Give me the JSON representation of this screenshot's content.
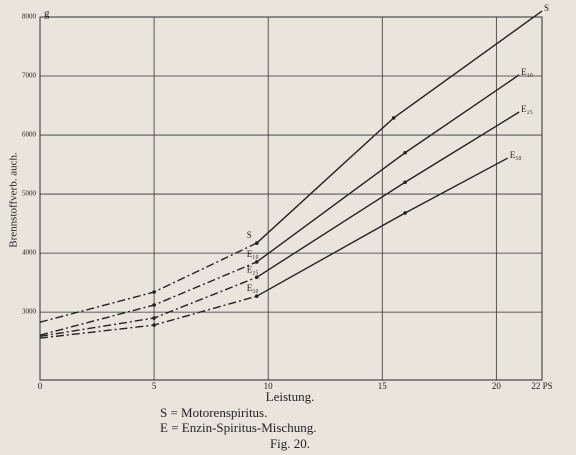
{
  "chart_data": {
    "type": "line",
    "x_label": "Leistung.",
    "y_label": "Brennstoffverb. auch.",
    "y_unit": "g",
    "caption": [
      "S = Motorenspiritus.",
      "E = Enzin-Spiritus-Mischung.",
      "Fig. 20."
    ],
    "xlim": [
      0,
      22
    ],
    "xticks": [
      0,
      5,
      10,
      15,
      20,
      {
        "value": 22,
        "label": "22 PS"
      }
    ],
    "ylim": [
      1850,
      8000
    ],
    "yticks": [
      3000,
      4000,
      5000,
      6000,
      7000,
      8000
    ],
    "grid": true,
    "color": "#222",
    "solid_from_x": 9.5,
    "series": [
      {
        "name": "S",
        "x": [
          0,
          5,
          9.5,
          15.5,
          22
        ],
        "values": [
          2830,
          3340,
          4170,
          6290,
          8100
        ]
      },
      {
        "name": "E₁₀",
        "x": [
          0,
          5,
          9.5,
          16,
          21
        ],
        "values": [
          2610,
          3120,
          3850,
          5700,
          7020
        ]
      },
      {
        "name": "E₂₅",
        "x": [
          0,
          5,
          9.5,
          16,
          21
        ],
        "values": [
          2590,
          2900,
          3590,
          5200,
          6390
        ]
      },
      {
        "name": "E₅₀",
        "x": [
          0,
          5,
          9.5,
          16,
          20.5
        ],
        "values": [
          2560,
          2780,
          3270,
          4680,
          5610
        ]
      }
    ]
  }
}
